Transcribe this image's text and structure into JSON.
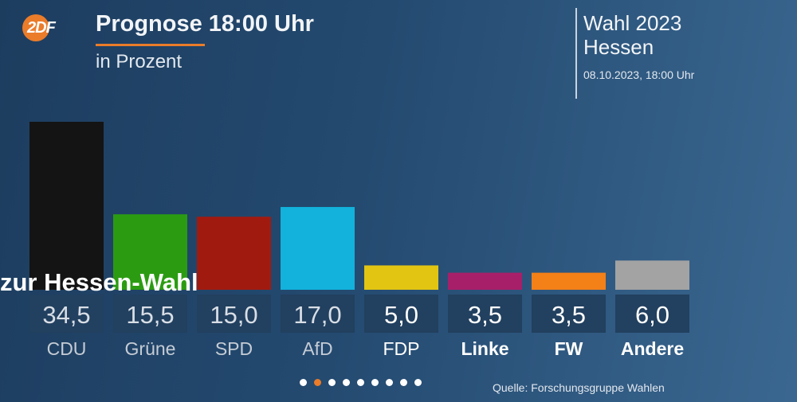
{
  "logo": {
    "text": "2DF"
  },
  "header": {
    "title": "Prognose 18:00 Uhr",
    "subtitle": "in Prozent"
  },
  "election": {
    "title": "Wahl 2023",
    "region": "Hessen",
    "datetime": "08.10.2023, 18:00 Uhr"
  },
  "overlay": {
    "text": "zur Hessen-Wahl"
  },
  "pager": {
    "total": 9,
    "active_index": 1
  },
  "source": "Quelle: Forschungsgruppe Wahlen",
  "colors": {
    "accent": "#ea7c2a",
    "label_box": "#22405f"
  },
  "chart_data": {
    "type": "bar",
    "title": "Prognose 18:00 Uhr",
    "subtitle": "in Prozent",
    "categories": [
      "CDU",
      "Grüne",
      "SPD",
      "AfD",
      "FDP",
      "Linke",
      "FW",
      "Andere"
    ],
    "values": [
      34.5,
      15.5,
      15.0,
      17.0,
      5.0,
      3.5,
      3.5,
      6.0
    ],
    "value_labels": [
      "34,5",
      "15,5",
      "15,0",
      "17,0",
      "5,0",
      "3,5",
      "3,5",
      "6,0"
    ],
    "colors": [
      "#141414",
      "#2b9c12",
      "#a11a10",
      "#12b2dc",
      "#e2c512",
      "#a81f69",
      "#f48018",
      "#a3a3a3"
    ],
    "ylim": [
      0,
      34.5
    ]
  }
}
